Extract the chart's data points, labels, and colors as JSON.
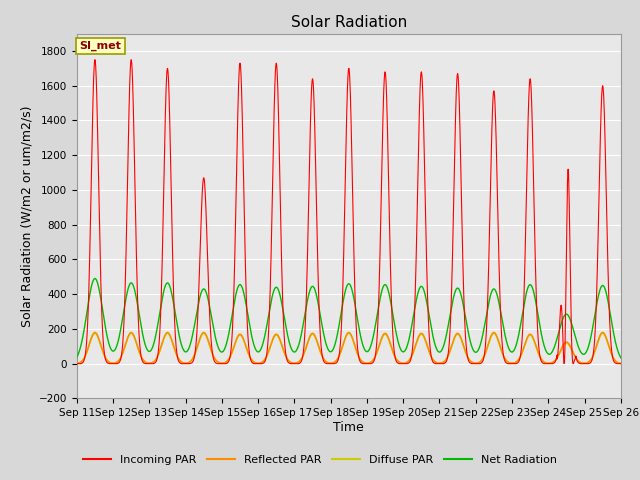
{
  "title": "Solar Radiation",
  "ylabel": "Solar Radiation (W/m2 or um/m2/s)",
  "xlabel": "Time",
  "ylim": [
    -200,
    1900
  ],
  "yticks": [
    -200,
    0,
    200,
    400,
    600,
    800,
    1000,
    1200,
    1400,
    1600,
    1800
  ],
  "x_labels": [
    "Sep 11",
    "Sep 12",
    "Sep 13",
    "Sep 14",
    "Sep 15",
    "Sep 16",
    "Sep 17",
    "Sep 18",
    "Sep 19",
    "Sep 20",
    "Sep 21",
    "Sep 22",
    "Sep 23",
    "Sep 24",
    "Sep 25",
    "Sep 26"
  ],
  "colors": {
    "incoming": "#FF0000",
    "reflected": "#FF8C00",
    "diffuse": "#CCCC00",
    "net": "#00BB00",
    "background": "#E8E8E8",
    "grid": "#FFFFFF"
  },
  "legend_label": "SI_met",
  "legend_entries": [
    "Incoming PAR",
    "Reflected PAR",
    "Diffuse PAR",
    "Net Radiation"
  ],
  "num_days": 15,
  "incoming_peaks": [
    1750,
    1750,
    1700,
    1070,
    1730,
    1730,
    1640,
    1700,
    1680,
    1680,
    1670,
    1570,
    1640,
    1300,
    1600
  ],
  "reflected_peaks": [
    180,
    180,
    180,
    180,
    170,
    170,
    175,
    180,
    175,
    175,
    175,
    180,
    170,
    125,
    180
  ],
  "diffuse_peaks": [
    175,
    175,
    175,
    175,
    165,
    165,
    170,
    175,
    170,
    170,
    170,
    175,
    165,
    120,
    175
  ],
  "net_peaks": [
    490,
    465,
    465,
    430,
    455,
    440,
    445,
    460,
    455,
    445,
    435,
    430,
    455,
    285,
    450
  ],
  "net_night": -80,
  "title_fontsize": 11,
  "tick_fontsize": 7.5,
  "label_fontsize": 9
}
